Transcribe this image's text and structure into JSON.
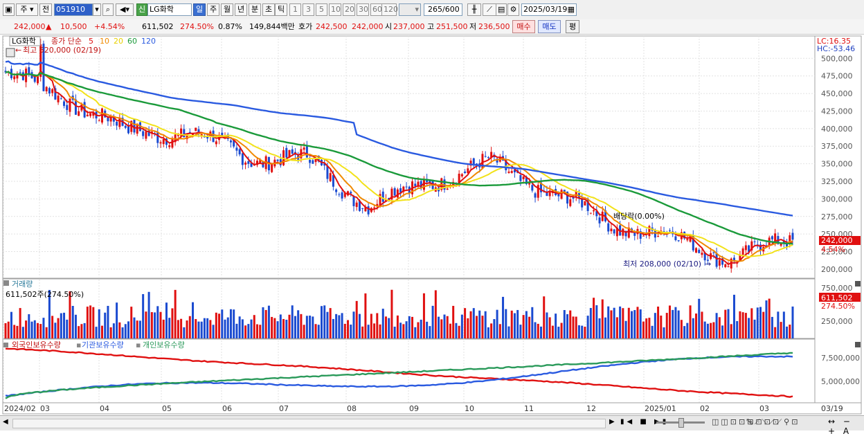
{
  "toolbar": {
    "market_label": "주",
    "prev_label": "전",
    "stock_code": "051910",
    "new_badge": "신",
    "stock_name": "LG화학",
    "periods": [
      "일",
      "주",
      "월",
      "년",
      "분",
      "초",
      "틱"
    ],
    "active_period": "일",
    "intervals": [
      "1",
      "3",
      "5",
      "10",
      "20",
      "30",
      "60",
      "120"
    ],
    "count_value": "265",
    "count_total": "/600",
    "date_value": "2025/03/19"
  },
  "quote": {
    "price": "242,000",
    "change_arrow": "▲",
    "change": "10,500",
    "change_pct": "+4.54%",
    "volume": "611,502",
    "volume_pct": "274.50%",
    "turnover_pct": "0.87%",
    "amount": "149,844백만",
    "bid_label": "호가",
    "bid1": "242,500",
    "bid2": "242,000",
    "open_label": "시",
    "open": "237,000",
    "high_label": "고",
    "high": "251,500",
    "low_label": "저",
    "low": "236,500",
    "buy_label": "매수",
    "sell_label": "매도",
    "eval_label": "평"
  },
  "legend": {
    "name": "LG화학",
    "type_label": "종가 단순",
    "ma": [
      {
        "label": "5",
        "color": "#e01010"
      },
      {
        "label": "10",
        "color": "#f08a00"
      },
      {
        "label": "20",
        "color": "#f2e21a"
      },
      {
        "label": "60",
        "color": "#1a9a3a"
      },
      {
        "label": "120",
        "color": "#2a5ae0"
      }
    ]
  },
  "annotations": {
    "max_label": "최고 520,000 (02/19)",
    "min_label": "최저 208,000 (02/10)",
    "dividend_label": "배당락(0.00%)",
    "lc": "LC:16.35",
    "hc": "HC:-53.46",
    "cur_price_tag": "242,000",
    "cur_pct_tag": "4.54%",
    "vol_tag": "611,502",
    "vol_pct_tag": "274.50%"
  },
  "price_axis": {
    "ticks": [
      "500,000",
      "475,000",
      "450,000",
      "425,000",
      "400,000",
      "375,000",
      "350,000",
      "325,000",
      "300,000",
      "275,000",
      "250,000",
      "225,000",
      "200,000"
    ]
  },
  "volume_panel": {
    "title": "거래량",
    "info": "611,502주(274.50%)",
    "ticks": [
      "750,000",
      "500,000",
      "250,000"
    ]
  },
  "holdings_panel": {
    "series": [
      {
        "name": "외국인보유수량",
        "color": "#e01010"
      },
      {
        "name": "기관보유수량",
        "color": "#2a5ae0"
      },
      {
        "name": "개인보유수량",
        "color": "#2a9a5a"
      }
    ],
    "ticks": [
      "7,500,000",
      "5,000,000"
    ]
  },
  "x_axis": {
    "labels": [
      "2024/02",
      "03",
      "04",
      "05",
      "06",
      "07",
      "08",
      "09",
      "10",
      "11",
      "12",
      "2025/01",
      "02",
      "03"
    ],
    "right_label": "03/19"
  },
  "chart_data": {
    "type": "candlestick",
    "ylim": [
      200000,
      520000
    ],
    "moving_average_periods": [
      5,
      10,
      20,
      60,
      120
    ],
    "max": {
      "value": 520000,
      "date": "02/19"
    },
    "min": {
      "value": 208000,
      "date": "02/10"
    },
    "last": {
      "date": "2025/03/19",
      "open": 237000,
      "high": 251500,
      "low": 236500,
      "close": 242000,
      "volume": 611502
    },
    "monthly_close_estimates": {
      "categories": [
        "2024/02",
        "03",
        "04",
        "05",
        "06",
        "07",
        "08",
        "09",
        "10",
        "11",
        "12",
        "2025/01",
        "02",
        "03"
      ],
      "values": [
        480000,
        445000,
        395000,
        395000,
        360000,
        355000,
        290000,
        325000,
        350000,
        310000,
        265000,
        245000,
        215000,
        242000
      ]
    }
  },
  "colors": {
    "up": "#e01010",
    "down": "#1a4ad0",
    "ma5": "#e01010",
    "ma10": "#f08a00",
    "ma20": "#f2e21a",
    "ma60": "#1a9a3a",
    "ma120": "#2a5ae0"
  }
}
